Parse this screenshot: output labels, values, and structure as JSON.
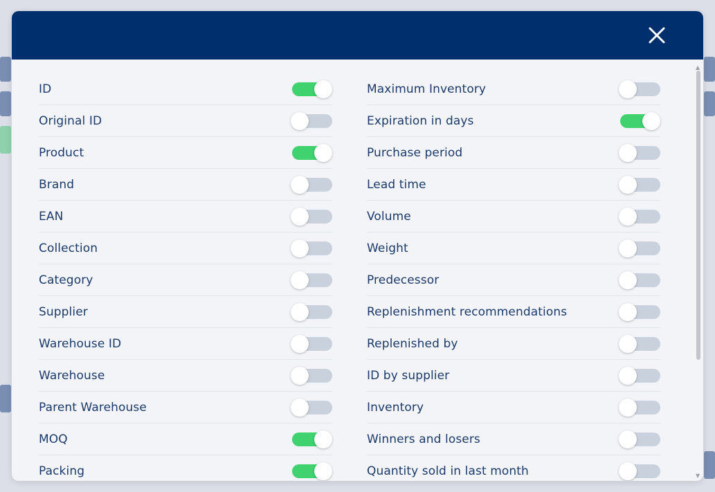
{
  "modal": {
    "close_icon": "close-icon",
    "colors": {
      "header": "#002f6e",
      "toggle_on": "#3fd26f",
      "toggle_off": "#c9d1dd",
      "label": "#1b3a6b"
    },
    "left_column": [
      {
        "label": "ID",
        "on": true
      },
      {
        "label": "Original ID",
        "on": false
      },
      {
        "label": "Product",
        "on": true
      },
      {
        "label": "Brand",
        "on": false
      },
      {
        "label": "EAN",
        "on": false
      },
      {
        "label": "Collection",
        "on": false
      },
      {
        "label": "Category",
        "on": false
      },
      {
        "label": "Supplier",
        "on": false
      },
      {
        "label": "Warehouse ID",
        "on": false
      },
      {
        "label": "Warehouse",
        "on": false
      },
      {
        "label": "Parent Warehouse",
        "on": false
      },
      {
        "label": "MOQ",
        "on": true
      },
      {
        "label": "Packing",
        "on": true
      }
    ],
    "right_column": [
      {
        "label": "Maximum Inventory",
        "on": false
      },
      {
        "label": "Expiration in days",
        "on": true
      },
      {
        "label": "Purchase period",
        "on": false
      },
      {
        "label": "Lead time",
        "on": false
      },
      {
        "label": "Volume",
        "on": false
      },
      {
        "label": "Weight",
        "on": false
      },
      {
        "label": "Predecessor",
        "on": false
      },
      {
        "label": "Replenishment recommendations",
        "on": false
      },
      {
        "label": "Replenished by",
        "on": false
      },
      {
        "label": "ID by supplier",
        "on": false
      },
      {
        "label": "Inventory",
        "on": false
      },
      {
        "label": "Winners and losers",
        "on": false
      },
      {
        "label": "Quantity sold in last month",
        "on": false
      }
    ]
  }
}
